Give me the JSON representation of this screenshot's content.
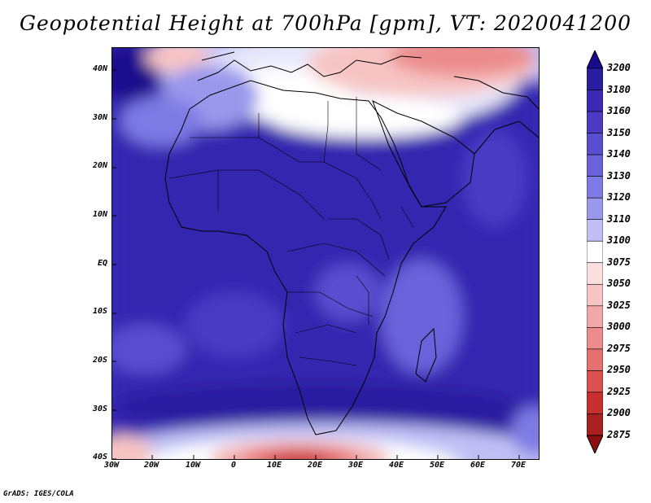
{
  "title": "Geopotential Height at 700hPa [gpm], VT: 2020041200",
  "footer": "GrADS: IGES/COLA",
  "map": {
    "variable": "Geopotential Height",
    "level": "700hPa",
    "units": "gpm",
    "valid_time": "2020041200",
    "lat_labels": [
      "40N",
      "30N",
      "20N",
      "10N",
      "EQ",
      "10S",
      "20S",
      "30S",
      "40S"
    ],
    "lon_labels": [
      "30W",
      "20W",
      "10W",
      "0",
      "10E",
      "20E",
      "30E",
      "40E",
      "50E",
      "60E",
      "70E"
    ],
    "lat_range": [
      -40,
      45
    ],
    "lon_range": [
      -30,
      75
    ]
  },
  "colorbar": {
    "levels": [
      "3200",
      "3180",
      "3160",
      "3150",
      "3140",
      "3130",
      "3120",
      "3110",
      "3100",
      "3075",
      "3050",
      "3025",
      "3000",
      "2975",
      "2950",
      "2925",
      "2900",
      "2875"
    ],
    "colors": [
      "#1a0a8c",
      "#2a1ea0",
      "#3a2ab5",
      "#4a3ac4",
      "#5a4ed0",
      "#6a62db",
      "#7e7ae4",
      "#9a98ec",
      "#c0c0f5",
      "#ffffff",
      "#fce0e0",
      "#f7c4c4",
      "#f2a8a8",
      "#ec8c8c",
      "#e57070",
      "#dc5050",
      "#c83030",
      "#a82020",
      "#8c1010"
    ]
  }
}
